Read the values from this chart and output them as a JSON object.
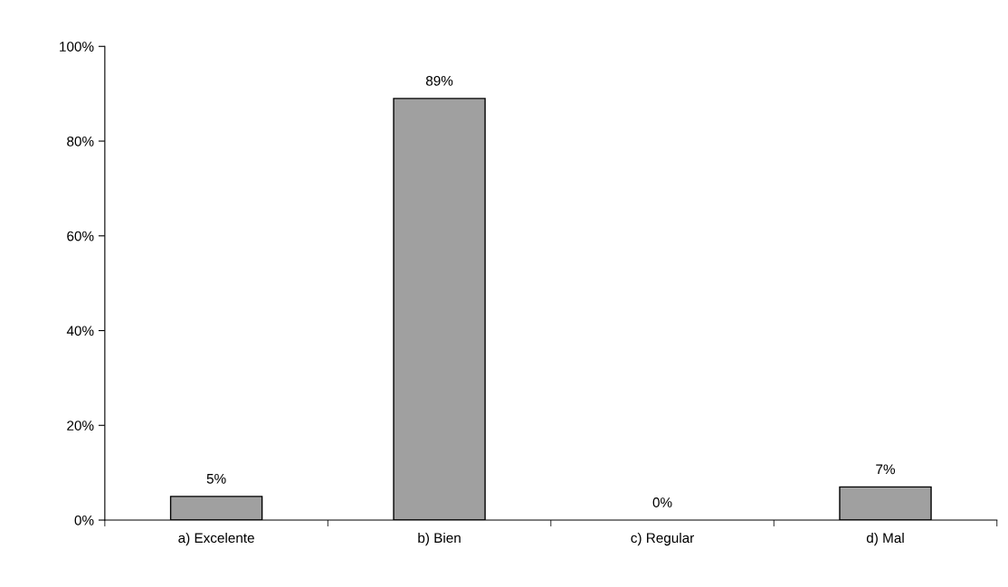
{
  "chart_data": {
    "type": "bar",
    "categories": [
      "a) Excelente",
      "b) Bien",
      "c) Regular",
      "d) Mal"
    ],
    "values": [
      5,
      89,
      0,
      7
    ],
    "value_labels": [
      "5%",
      "89%",
      "0%",
      "7%"
    ],
    "color": "#a0a0a0",
    "ylim": [
      0,
      100
    ],
    "yticks": [
      {
        "value": 0,
        "label": "0%"
      },
      {
        "value": 20,
        "label": "20%"
      },
      {
        "value": 40,
        "label": "40%"
      },
      {
        "value": 60,
        "label": "60%"
      },
      {
        "value": 80,
        "label": "80%"
      },
      {
        "value": 100,
        "label": "100%"
      }
    ],
    "grid": false,
    "legend": false
  }
}
